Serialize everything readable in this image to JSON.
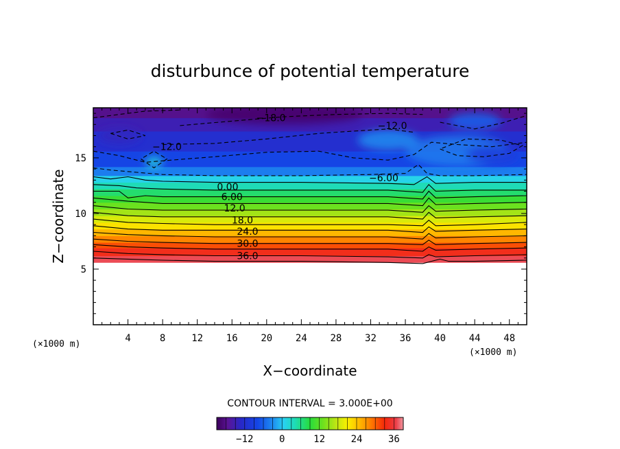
{
  "chart_data": {
    "type": "heatmap",
    "title": "disturbunce of potential temperature",
    "xlabel": "X−coordinate",
    "ylabel": "Z−coordinate",
    "x_unit_label": "(×1000 m)",
    "y_unit_label": "(×1000 m)",
    "xlim": [
      0,
      50
    ],
    "ylim": [
      0,
      19.5
    ],
    "x_ticks": [
      4,
      8,
      12,
      16,
      20,
      24,
      28,
      32,
      36,
      40,
      44,
      48
    ],
    "x_tick_labels": [
      "4",
      "8",
      "12",
      "16",
      "20",
      "24",
      "28",
      "32",
      "36",
      "40",
      "44",
      "48"
    ],
    "y_ticks": [
      5,
      10,
      15
    ],
    "y_tick_labels": [
      "5",
      "10",
      "15"
    ],
    "contour_interval_label": "CONTOUR INTERVAL = 3.000E+00",
    "contour_labels": [
      {
        "text": "−18.0",
        "x": 20.5,
        "z": 18.6
      },
      {
        "text": "−12.0",
        "x": 34.5,
        "z": 17.9
      },
      {
        "text": "−12.0",
        "x": 8.5,
        "z": 16.0
      },
      {
        "text": "−6.00",
        "x": 33.5,
        "z": 13.2
      },
      {
        "text": "0.00",
        "x": 15.5,
        "z": 12.4
      },
      {
        "text": "6.00",
        "x": 16.0,
        "z": 11.5
      },
      {
        "text": "12.0",
        "x": 16.3,
        "z": 10.5
      },
      {
        "text": "18.0",
        "x": 17.2,
        "z": 9.4
      },
      {
        "text": "24.0",
        "x": 17.8,
        "z": 8.4
      },
      {
        "text": "30.0",
        "x": 17.8,
        "z": 7.3
      },
      {
        "text": "36.0",
        "x": 17.8,
        "z": 6.2
      }
    ],
    "colorbar": {
      "range": [
        -21,
        39
      ],
      "ticks": [
        -12,
        0,
        12,
        24,
        36
      ],
      "tick_labels": [
        "−12",
        "0",
        "12",
        "24",
        "36"
      ]
    },
    "solid_contours": [
      {
        "level": 0,
        "points": [
          [
            0,
            13.3
          ],
          [
            2,
            13.1
          ],
          [
            4,
            13.3
          ],
          [
            6,
            13.0
          ],
          [
            8,
            12.9
          ],
          [
            14,
            12.8
          ],
          [
            24,
            12.8
          ],
          [
            34,
            12.7
          ],
          [
            37,
            12.6
          ],
          [
            38.5,
            13.3
          ],
          [
            39.5,
            12.7
          ],
          [
            44,
            12.8
          ],
          [
            50,
            12.8
          ]
        ]
      },
      {
        "level": 3,
        "points": [
          [
            0,
            12.6
          ],
          [
            3,
            12.5
          ],
          [
            5,
            12.3
          ],
          [
            8,
            12.2
          ],
          [
            14,
            12.1
          ],
          [
            24,
            12.1
          ],
          [
            34,
            12.1
          ],
          [
            38,
            11.9
          ],
          [
            38.7,
            12.6
          ],
          [
            39.5,
            12.0
          ],
          [
            44,
            12.1
          ],
          [
            50,
            12.1
          ]
        ]
      },
      {
        "level": 6,
        "points": [
          [
            0,
            12.0
          ],
          [
            3,
            12.0
          ],
          [
            4,
            11.4
          ],
          [
            6,
            11.6
          ],
          [
            8,
            11.5
          ],
          [
            14,
            11.5
          ],
          [
            24,
            11.5
          ],
          [
            34,
            11.5
          ],
          [
            38,
            11.3
          ],
          [
            38.7,
            12.0
          ],
          [
            39.5,
            11.4
          ],
          [
            44,
            11.5
          ],
          [
            50,
            11.6
          ]
        ]
      },
      {
        "level": 9,
        "points": [
          [
            0,
            11.4
          ],
          [
            4,
            11.1
          ],
          [
            8,
            10.9
          ],
          [
            14,
            10.9
          ],
          [
            24,
            10.9
          ],
          [
            34,
            10.9
          ],
          [
            38,
            10.7
          ],
          [
            38.7,
            11.4
          ],
          [
            39.5,
            10.8
          ],
          [
            44,
            10.9
          ],
          [
            50,
            11.0
          ]
        ]
      },
      {
        "level": 12,
        "points": [
          [
            0,
            10.7
          ],
          [
            4,
            10.4
          ],
          [
            8,
            10.3
          ],
          [
            14,
            10.3
          ],
          [
            24,
            10.3
          ],
          [
            34,
            10.3
          ],
          [
            38,
            10.1
          ],
          [
            38.7,
            10.7
          ],
          [
            39.5,
            10.2
          ],
          [
            44,
            10.3
          ],
          [
            50,
            10.4
          ]
        ]
      },
      {
        "level": 15,
        "points": [
          [
            0,
            10.1
          ],
          [
            4,
            9.8
          ],
          [
            8,
            9.7
          ],
          [
            14,
            9.7
          ],
          [
            24,
            9.7
          ],
          [
            34,
            9.7
          ],
          [
            38,
            9.5
          ],
          [
            38.7,
            10.1
          ],
          [
            39.5,
            9.6
          ],
          [
            44,
            9.7
          ],
          [
            50,
            9.8
          ]
        ]
      },
      {
        "level": 18,
        "points": [
          [
            0,
            9.5
          ],
          [
            4,
            9.2
          ],
          [
            8,
            9.1
          ],
          [
            14,
            9.0
          ],
          [
            24,
            9.0
          ],
          [
            34,
            9.0
          ],
          [
            38,
            8.9
          ],
          [
            38.7,
            9.4
          ],
          [
            39.5,
            8.9
          ],
          [
            44,
            9.0
          ],
          [
            50,
            9.2
          ]
        ]
      },
      {
        "level": 21,
        "points": [
          [
            0,
            8.9
          ],
          [
            4,
            8.6
          ],
          [
            8,
            8.5
          ],
          [
            14,
            8.5
          ],
          [
            24,
            8.5
          ],
          [
            34,
            8.5
          ],
          [
            38,
            8.3
          ],
          [
            38.7,
            8.8
          ],
          [
            39.5,
            8.4
          ],
          [
            44,
            8.5
          ],
          [
            50,
            8.6
          ]
        ]
      },
      {
        "level": 24,
        "points": [
          [
            0,
            8.3
          ],
          [
            4,
            8.1
          ],
          [
            8,
            8.0
          ],
          [
            14,
            7.9
          ],
          [
            24,
            7.9
          ],
          [
            34,
            7.9
          ],
          [
            38,
            7.7
          ],
          [
            38.7,
            8.2
          ],
          [
            39.5,
            7.8
          ],
          [
            44,
            7.9
          ],
          [
            50,
            8.0
          ]
        ]
      },
      {
        "level": 27,
        "points": [
          [
            0,
            7.7
          ],
          [
            4,
            7.5
          ],
          [
            8,
            7.4
          ],
          [
            14,
            7.3
          ],
          [
            24,
            7.3
          ],
          [
            34,
            7.3
          ],
          [
            38,
            7.2
          ],
          [
            38.7,
            7.6
          ],
          [
            39.5,
            7.2
          ],
          [
            44,
            7.3
          ],
          [
            50,
            7.4
          ]
        ]
      },
      {
        "level": 30,
        "points": [
          [
            0,
            7.2
          ],
          [
            4,
            7.0
          ],
          [
            8,
            6.9
          ],
          [
            14,
            6.8
          ],
          [
            24,
            6.8
          ],
          [
            34,
            6.8
          ],
          [
            38,
            6.6
          ],
          [
            38.7,
            7.0
          ],
          [
            39.5,
            6.7
          ],
          [
            44,
            6.8
          ],
          [
            50,
            6.9
          ]
        ]
      },
      {
        "level": 33,
        "points": [
          [
            0,
            6.6
          ],
          [
            4,
            6.4
          ],
          [
            8,
            6.3
          ],
          [
            14,
            6.2
          ],
          [
            24,
            6.2
          ],
          [
            34,
            6.1
          ],
          [
            38,
            6.0
          ],
          [
            38.7,
            6.3
          ],
          [
            39.5,
            6.1
          ],
          [
            44,
            6.2
          ],
          [
            50,
            6.3
          ]
        ]
      },
      {
        "level": 36,
        "points": [
          [
            0,
            6.0
          ],
          [
            4,
            5.9
          ],
          [
            8,
            5.8
          ],
          [
            14,
            5.7
          ],
          [
            24,
            5.7
          ],
          [
            34,
            5.6
          ],
          [
            38,
            5.5
          ],
          [
            40,
            5.9
          ],
          [
            41,
            5.7
          ],
          [
            44,
            5.7
          ],
          [
            50,
            5.8
          ]
        ]
      }
    ],
    "dashed_contours": [
      {
        "level": -6,
        "points": [
          [
            0,
            14.1
          ],
          [
            2,
            13.9
          ],
          [
            5,
            13.7
          ],
          [
            8,
            13.5
          ],
          [
            14,
            13.4
          ],
          [
            24,
            13.4
          ],
          [
            32,
            13.5
          ],
          [
            36,
            13.6
          ],
          [
            37.5,
            14.4
          ],
          [
            38.5,
            13.6
          ],
          [
            40,
            13.4
          ],
          [
            44,
            13.4
          ],
          [
            50,
            13.5
          ]
        ]
      },
      {
        "level": -9,
        "points": [
          [
            0,
            15.6
          ],
          [
            3,
            15.2
          ],
          [
            6,
            14.6
          ],
          [
            9,
            14.8
          ],
          [
            14,
            15.1
          ],
          [
            20,
            15.5
          ],
          [
            26,
            15.6
          ],
          [
            30,
            15.0
          ],
          [
            34,
            14.8
          ],
          [
            37,
            15.3
          ],
          [
            39,
            16.4
          ],
          [
            42,
            16.2
          ],
          [
            46,
            16.0
          ],
          [
            50,
            16.4
          ]
        ]
      },
      {
        "level": -12,
        "points": [
          [
            8,
            16.2
          ],
          [
            14,
            16.3
          ],
          [
            20,
            16.7
          ],
          [
            26,
            17.2
          ],
          [
            30,
            17.4
          ],
          [
            34,
            17.6
          ],
          [
            37,
            17.3
          ]
        ]
      },
      {
        "level": -15,
        "points": [
          [
            10,
            17.9
          ],
          [
            16,
            18.3
          ],
          [
            22,
            18.7
          ],
          [
            28,
            18.9
          ],
          [
            34,
            19.0
          ],
          [
            38,
            18.9
          ]
        ]
      },
      {
        "level": -12,
        "points": [
          [
            40,
            18.2
          ],
          [
            44,
            17.6
          ],
          [
            47,
            18.1
          ],
          [
            50,
            18.8
          ]
        ]
      },
      {
        "level": -9,
        "points": [
          [
            0,
            18.6
          ],
          [
            2,
            18.8
          ],
          [
            6,
            19.2
          ],
          [
            10,
            19.3
          ]
        ]
      },
      {
        "level": -12,
        "points": [
          [
            40,
            15.8
          ],
          [
            42,
            15.2
          ],
          [
            45,
            15.1
          ],
          [
            48,
            15.4
          ],
          [
            49.5,
            16.1
          ],
          [
            47,
            16.6
          ],
          [
            43,
            16.7
          ],
          [
            40,
            15.8
          ]
        ]
      },
      {
        "level": -12,
        "points": [
          [
            2,
            17.2
          ],
          [
            4,
            16.7
          ],
          [
            6,
            17.0
          ],
          [
            4,
            17.5
          ],
          [
            2,
            17.2
          ]
        ]
      },
      {
        "level": -9,
        "points": [
          [
            5.5,
            14.9
          ],
          [
            7,
            14.1
          ],
          [
            8.5,
            14.9
          ],
          [
            7,
            15.6
          ],
          [
            5.5,
            14.9
          ]
        ]
      }
    ],
    "bands": [
      {
        "zmin": 0,
        "zmax": 5.6,
        "value": null
      },
      {
        "zmin": 5.6,
        "zmax": 6.2,
        "value": 37
      },
      {
        "zmin": 6.2,
        "zmax": 6.9,
        "value": 34
      },
      {
        "zmin": 6.9,
        "zmax": 7.4,
        "value": 31
      },
      {
        "zmin": 7.4,
        "zmax": 8.0,
        "value": 28
      },
      {
        "zmin": 8.0,
        "zmax": 8.6,
        "value": 25
      },
      {
        "zmin": 8.6,
        "zmax": 9.2,
        "value": 22
      },
      {
        "zmin": 9.2,
        "zmax": 9.8,
        "value": 19
      },
      {
        "zmin": 9.8,
        "zmax": 10.4,
        "value": 16
      },
      {
        "zmin": 10.4,
        "zmax": 11.0,
        "value": 13
      },
      {
        "zmin": 11.0,
        "zmax": 11.6,
        "value": 10
      },
      {
        "zmin": 11.6,
        "zmax": 12.2,
        "value": 7
      },
      {
        "zmin": 12.2,
        "zmax": 12.8,
        "value": 4
      },
      {
        "zmin": 12.8,
        "zmax": 13.4,
        "value": 1
      },
      {
        "zmin": 13.4,
        "zmax": 14.2,
        "value": -4
      },
      {
        "zmin": 14.2,
        "zmax": 15.6,
        "value": -8
      },
      {
        "zmin": 15.6,
        "zmax": 17.4,
        "value": -12
      },
      {
        "zmin": 17.4,
        "zmax": 18.6,
        "value": -15
      },
      {
        "zmin": 18.6,
        "zmax": 19.5,
        "value": -18
      }
    ],
    "patches": [
      {
        "cx": 22,
        "cz": 18.9,
        "rx": 9,
        "rz": 0.9,
        "value": -20
      },
      {
        "cx": 42,
        "cz": 15.6,
        "rx": 6,
        "rz": 1.4,
        "value": -4
      },
      {
        "cx": 46,
        "cz": 15.3,
        "rx": 3,
        "rz": 0.8,
        "value": -10
      },
      {
        "cx": 34,
        "cz": 16.6,
        "rx": 3.5,
        "rz": 0.9,
        "value": -3
      },
      {
        "cx": 7,
        "cz": 14.6,
        "rx": 1,
        "rz": 0.5,
        "value": 2
      },
      {
        "cx": 3,
        "cz": 17.0,
        "rx": 2.5,
        "rz": 0.7,
        "value": -14
      },
      {
        "cx": 44,
        "cz": 18.3,
        "rx": 3,
        "rz": 0.8,
        "value": -6
      }
    ]
  }
}
